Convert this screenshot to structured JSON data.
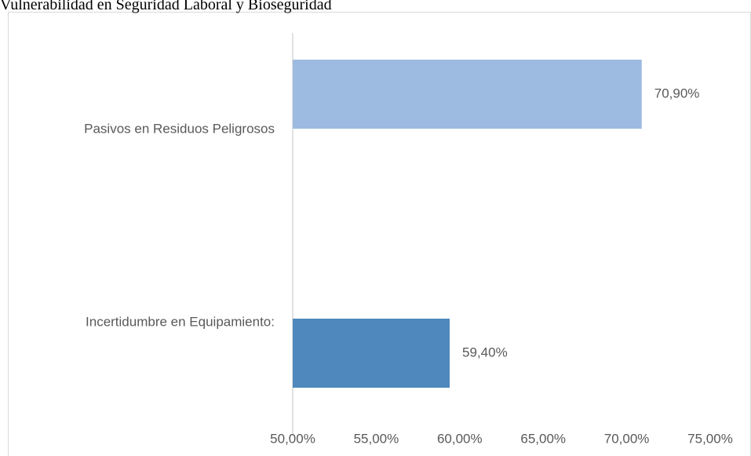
{
  "chart_data": {
    "type": "bar",
    "orientation": "horizontal",
    "title": "Vulnerabilidad en Seguridad Laboral y Bioseguridad",
    "categories": [
      "Pasivos en Residuos Peligrosos",
      "Incertidumbre en Equipamiento:"
    ],
    "values": [
      70.9,
      59.4
    ],
    "value_labels": [
      "70,90%",
      "59,40%"
    ],
    "colors": [
      "#9dbbe0",
      "#4f88bd"
    ],
    "xlim": [
      50,
      75
    ],
    "xticks": [
      {
        "value": 50,
        "label": "50,00%"
      },
      {
        "value": 55,
        "label": "55,00%"
      },
      {
        "value": 60,
        "label": "60,00%"
      },
      {
        "value": 65,
        "label": "65,00%"
      },
      {
        "value": 70,
        "label": "70,00%"
      },
      {
        "value": 75,
        "label": "75,00%"
      }
    ],
    "grid": false
  }
}
